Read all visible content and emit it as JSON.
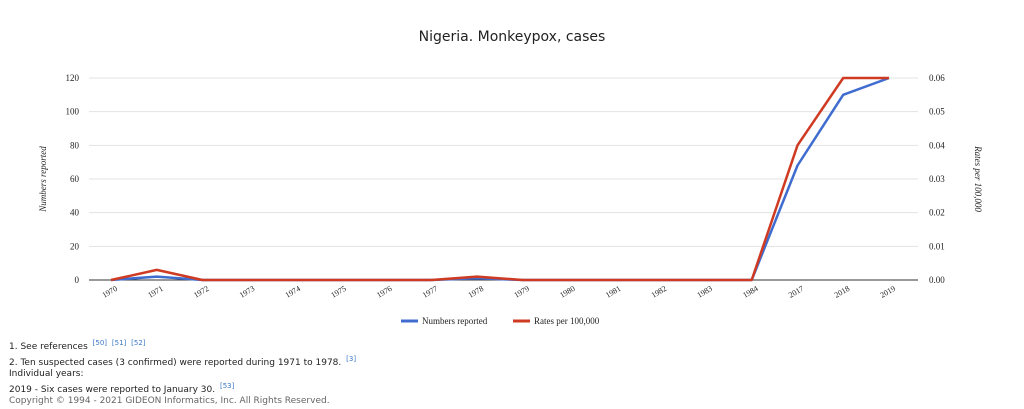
{
  "chart_data": {
    "type": "line",
    "title": "Nigeria. Monkeypox, cases",
    "categories": [
      "1970",
      "1971",
      "1972",
      "1973",
      "1974",
      "1975",
      "1976",
      "1977",
      "1978",
      "1979",
      "1980",
      "1981",
      "1982",
      "1983",
      "1984",
      "2017",
      "2018",
      "2019"
    ],
    "y_left": {
      "label": "Numbers reported",
      "min": 0,
      "max": 120,
      "ticks": [
        "0",
        "20",
        "40",
        "60",
        "80",
        "100",
        "120"
      ]
    },
    "y_right": {
      "label": "Rates per 100,000",
      "min": 0,
      "max": 0.06,
      "ticks": [
        "0.00",
        "0.01",
        "0.02",
        "0.03",
        "0.04",
        "0.05",
        "0.06"
      ]
    },
    "grid": true,
    "legend_position": "bottom-center",
    "series": [
      {
        "name": "Numbers reported",
        "axis": "left",
        "color": "#3f6ccf",
        "values": [
          0,
          2,
          0,
          0,
          0,
          0,
          0,
          0,
          1,
          0,
          0,
          0,
          0,
          0,
          0,
          68,
          110,
          120
        ]
      },
      {
        "name": "Rates per 100,000",
        "axis": "right",
        "color": "#cf3a22",
        "values": [
          0,
          0.003,
          0,
          0,
          0,
          0,
          0,
          0,
          0.001,
          0,
          0,
          0,
          0,
          0,
          0,
          0.04,
          0.06,
          0.06
        ]
      }
    ]
  },
  "notes": {
    "note1": {
      "text": "1. See references",
      "refs": [
        "[50]",
        "[51]",
        "[52]"
      ]
    },
    "note2": {
      "text": "2. Ten suspected cases (3 confirmed) were reported during 1971 to 1978.",
      "refs": [
        "[3]"
      ]
    },
    "note3": {
      "text": "Individual years:"
    },
    "note4": {
      "text": "2019 - Six cases were reported to January 30.",
      "refs": [
        "[53]"
      ]
    },
    "copyright": "Copyright © 1994 - 2021 GIDEON Informatics, Inc. All Rights Reserved."
  }
}
